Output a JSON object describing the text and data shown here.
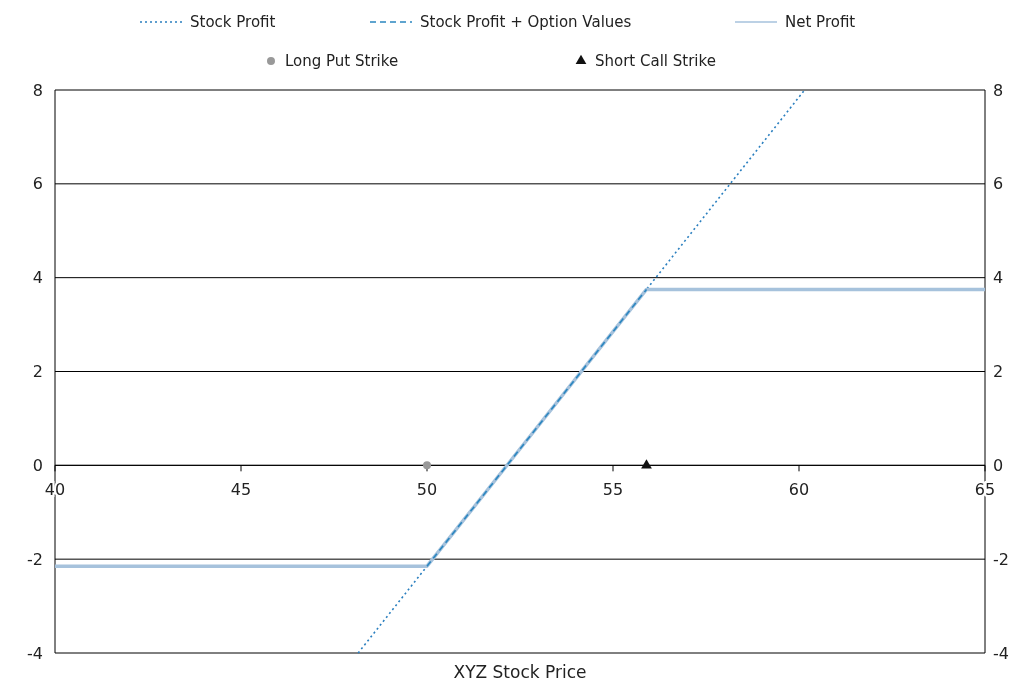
{
  "chart_data": {
    "type": "line",
    "xlabel": "XYZ Stock Price",
    "xlim": [
      40,
      65
    ],
    "xticks": [
      40,
      45,
      50,
      55,
      60,
      65
    ],
    "ylim": [
      -4,
      8
    ],
    "yticks": [
      -4,
      -2,
      0,
      2,
      4,
      6,
      8
    ],
    "y2lim": [
      -4,
      8
    ],
    "y2ticks": [
      -4,
      -2,
      0,
      2,
      4,
      6,
      8
    ],
    "grid": "y",
    "legend": "top",
    "series": [
      {
        "name": "Stock Profit",
        "line_style": "dotted",
        "color": "#2a7fbf",
        "x": [
          48.15,
          60.15
        ],
        "values": [
          -4,
          8
        ]
      },
      {
        "name": "Net Profit",
        "line_style": "solid",
        "color": "#a6c2dc",
        "x": [
          40,
          50,
          55.9,
          65
        ],
        "values": [
          -2.15,
          -2.15,
          3.75,
          3.75
        ]
      },
      {
        "name": "Stock Profit + Option Values",
        "line_style": "dashed",
        "color": "#2a86c0",
        "x": [
          50,
          55.9
        ],
        "values": [
          -2.15,
          3.75
        ]
      },
      {
        "name": "Long Put Strike",
        "type": "scatter",
        "marker": "circle",
        "color": "#999999",
        "x": [
          50
        ],
        "values": [
          0
        ]
      },
      {
        "name": "Short Call Strike",
        "type": "scatter",
        "marker": "triangle",
        "color": "#111111",
        "x": [
          55.9
        ],
        "values": [
          0
        ]
      }
    ]
  }
}
